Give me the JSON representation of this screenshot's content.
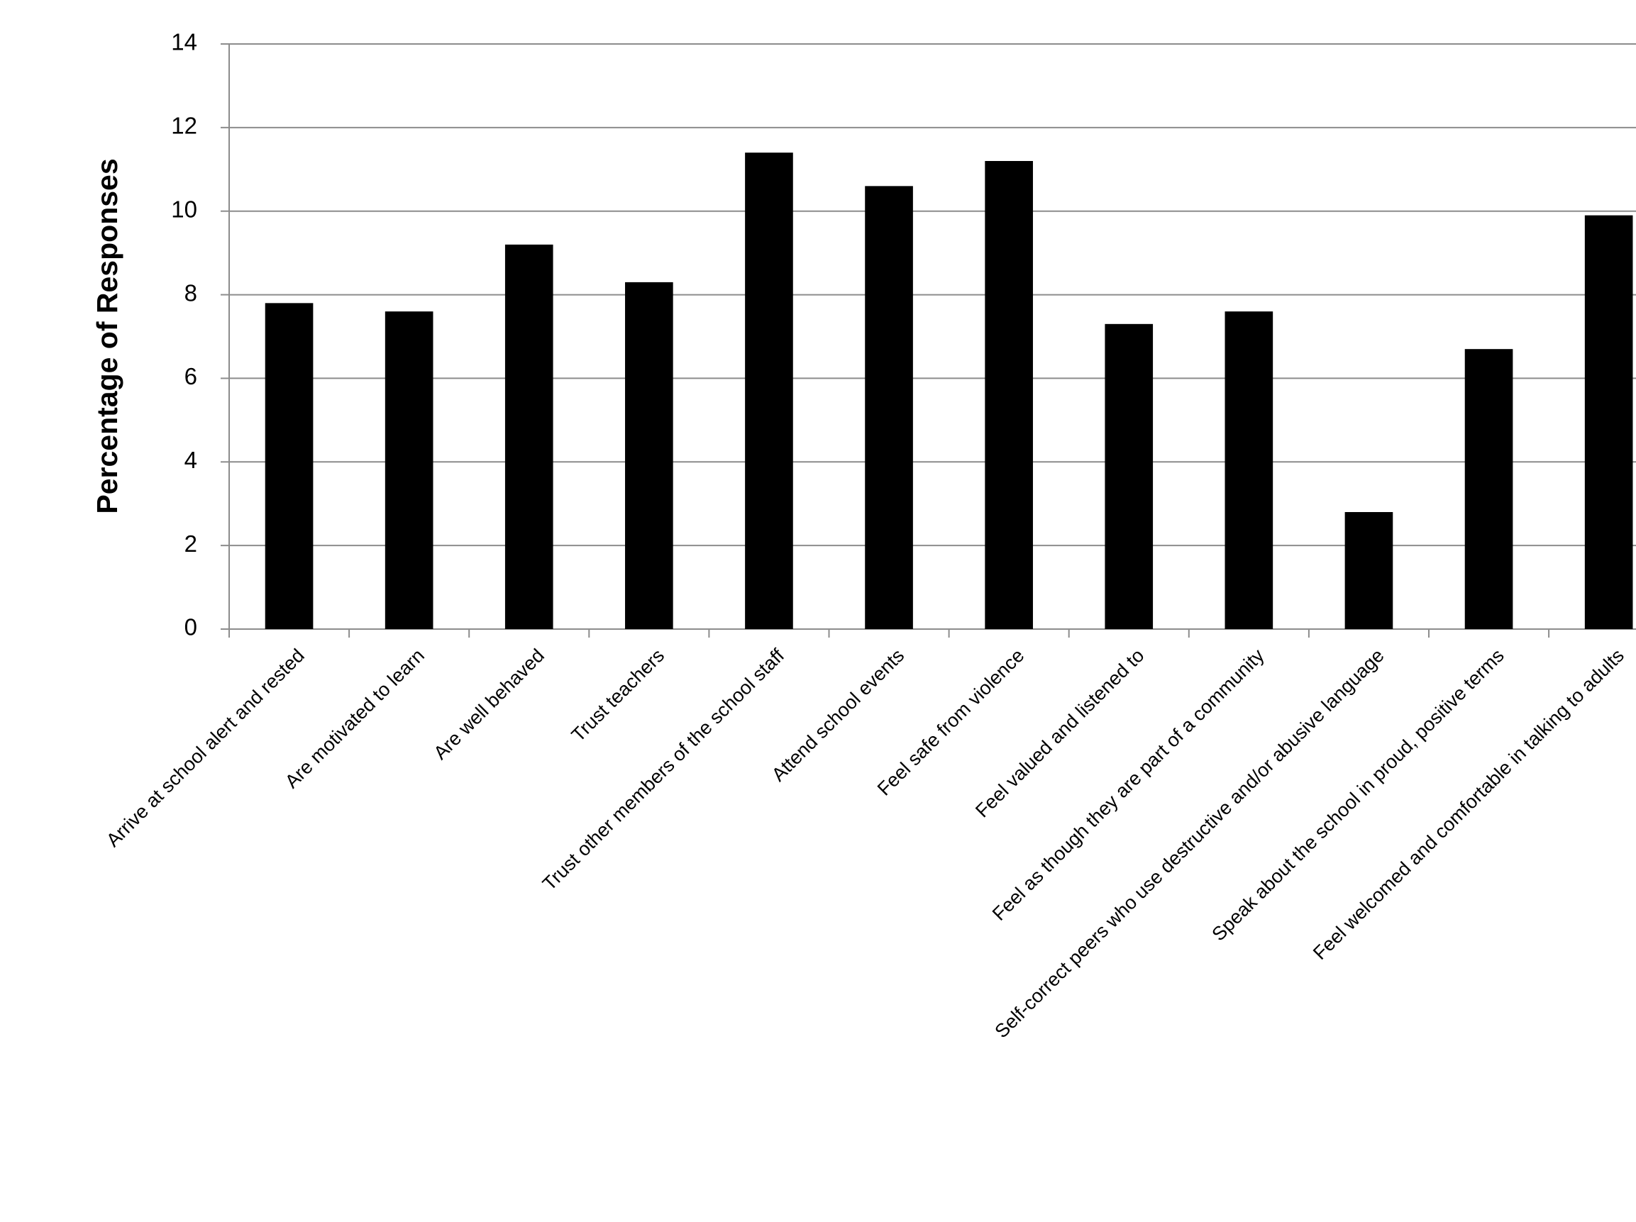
{
  "chart_data": {
    "type": "bar",
    "y_label": "Percentage of Responses",
    "categories": [
      "Arrive at school alert and rested",
      "Are motivated to learn",
      "Are well behaved",
      "Trust teachers",
      "Trust other members of the school staff",
      "Attend school events",
      "Feel safe from violence",
      "Feel valued and listened to",
      "Feel as though they are part of a community",
      "Self-correct peers who use destructive and/or abusive language",
      "Speak about the school in proud, positive terms",
      "Feel welcomed and comfortable in talking to adults"
    ],
    "values": [
      7.8,
      7.6,
      9.2,
      8.3,
      11.4,
      10.6,
      11.2,
      7.3,
      7.6,
      2.8,
      6.7,
      9.9
    ],
    "color": "#000000",
    "ylim": [
      0,
      14
    ],
    "yticks": [
      0,
      2,
      4,
      6,
      8,
      10,
      12,
      14
    ],
    "grid": true
  }
}
